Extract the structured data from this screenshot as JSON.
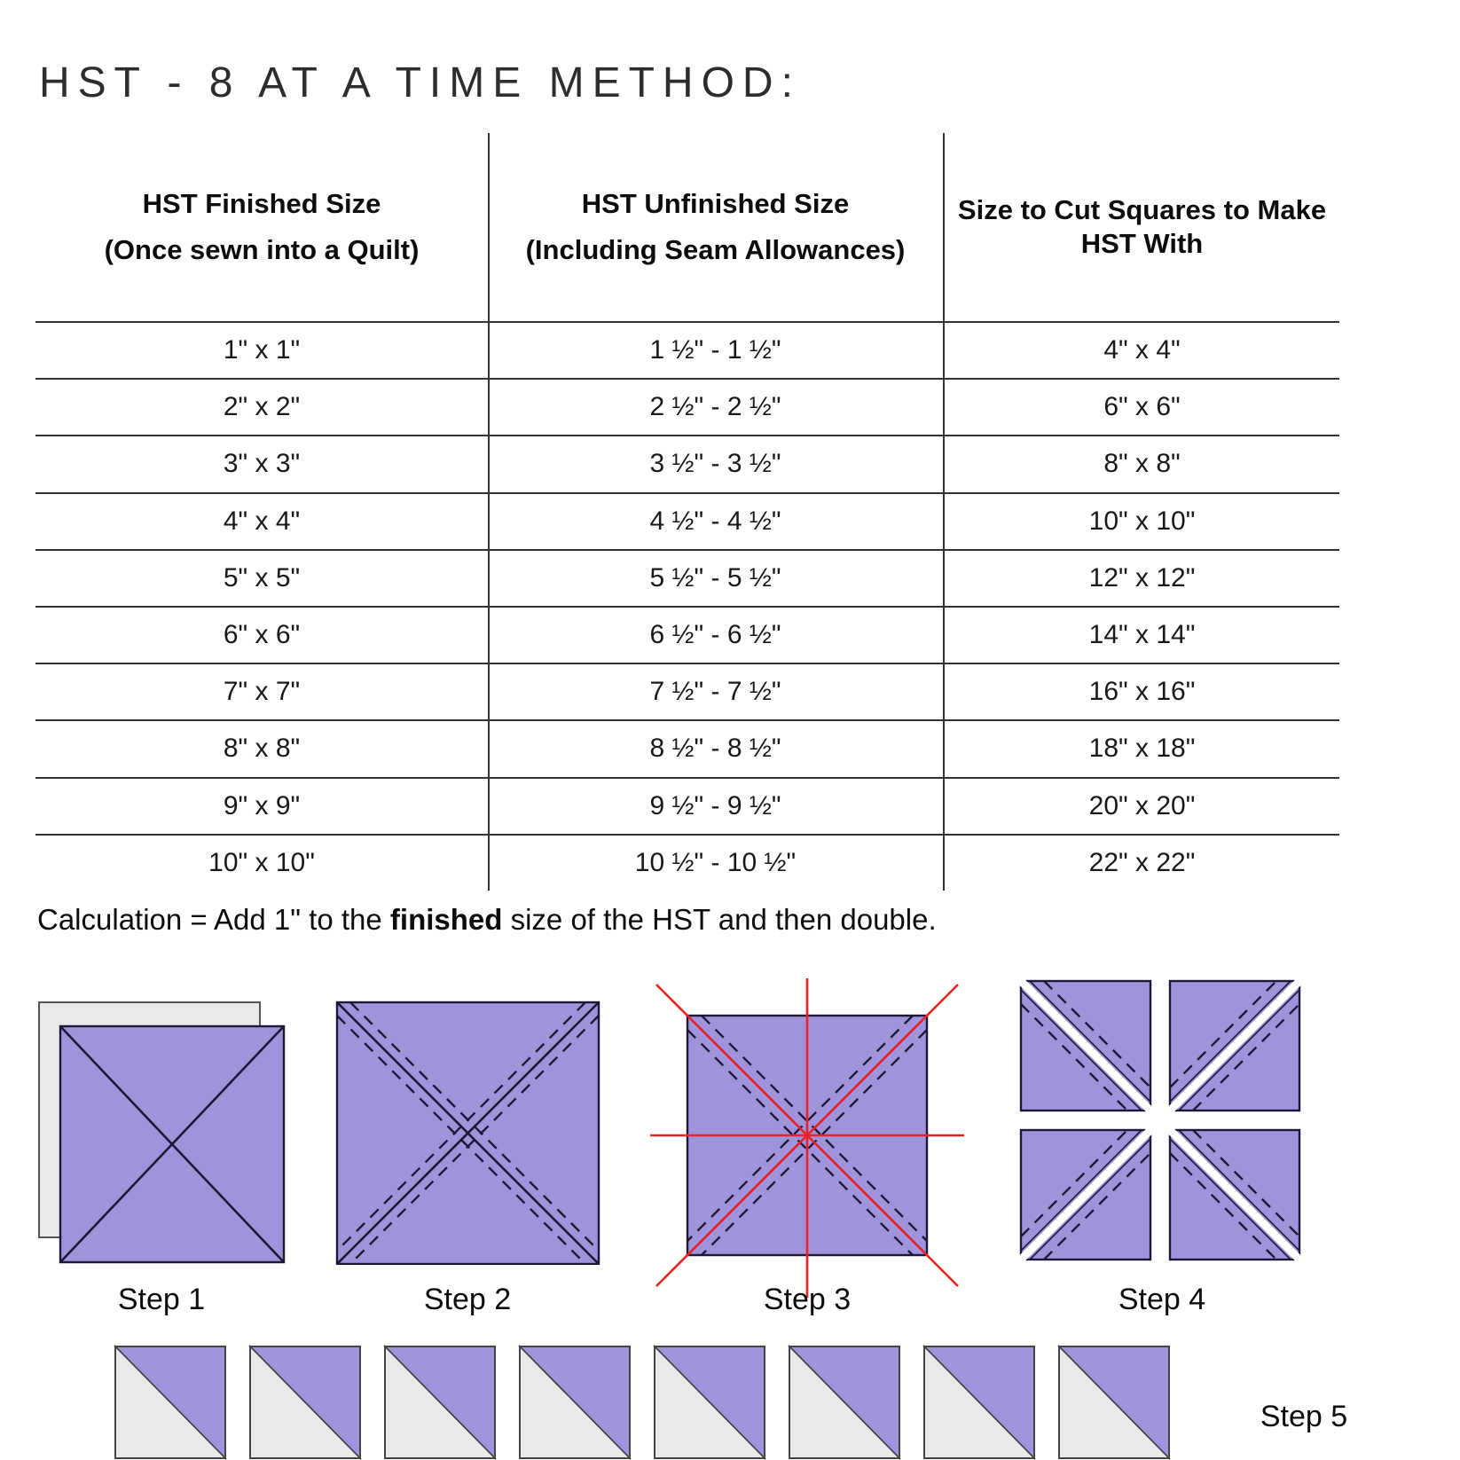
{
  "title": "HST - 8 AT A TIME METHOD:",
  "table": {
    "headers": [
      {
        "line1": "HST Finished Size",
        "line2": "(Once sewn into a Quilt)"
      },
      {
        "line1": "HST Unfinished Size",
        "line2": "(Including Seam Allowances)"
      },
      {
        "line1": "Size to Cut Squares to Make",
        "line2": "HST With"
      }
    ],
    "rows": [
      [
        "1\" x 1\"",
        "1 ½\" - 1 ½\"",
        "4\" x 4\""
      ],
      [
        "2\" x 2\"",
        "2 ½\" - 2 ½\"",
        "6\" x 6\""
      ],
      [
        "3\" x 3\"",
        "3 ½\" - 3 ½\"",
        "8\" x 8\""
      ],
      [
        "4\" x 4\"",
        "4 ½\" - 4 ½\"",
        "10\" x 10\""
      ],
      [
        "5\" x 5\"",
        "5 ½\" - 5 ½\"",
        "12\" x 12\""
      ],
      [
        "6\" x 6\"",
        "6 ½\" - 6 ½\"",
        "14\" x 14\""
      ],
      [
        "7\" x 7\"",
        "7 ½\" - 7 ½\"",
        "16\" x 16\""
      ],
      [
        "8\" x 8\"",
        "8 ½\" - 8 ½\"",
        "18\" x 18\""
      ],
      [
        "9\" x 9\"",
        "9 ½\" - 9 ½\"",
        "20\" x 20\""
      ],
      [
        "10\" x 10\"",
        "10 ½\" - 10 ½\"",
        "22\" x 22\""
      ]
    ]
  },
  "calculation": {
    "prefix": "Calculation = Add 1\" to the ",
    "bold": "finished",
    "suffix": " size of the HST and then double."
  },
  "steps": {
    "labels": [
      "Step 1",
      "Step 2",
      "Step 3",
      "Step 4",
      "Step 5"
    ]
  },
  "colors": {
    "fabric_purple": "#9f94dc",
    "fabric_gray": "#e9e9e9",
    "stitch_dark": "#1f1736",
    "cut_red": "#ec2028",
    "table_line": "#333333",
    "text": "#111111"
  }
}
